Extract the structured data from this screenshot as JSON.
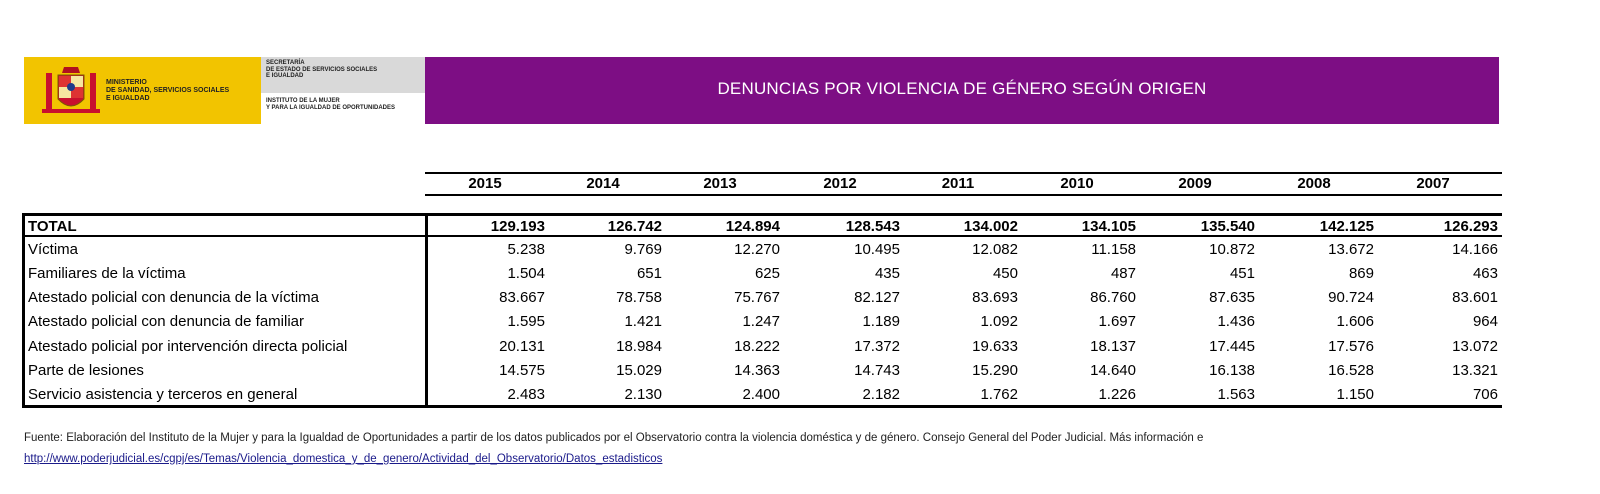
{
  "header": {
    "ministry": "MINISTERIO\nDE SANIDAD, SERVICIOS SOCIALES\nE IGUALDAD",
    "secretaria": "SECRETARÍA\nDE ESTADO DE SERVICIOS SOCIALES\nE IGUALDAD",
    "instituto": "INSTITUTO DE LA MUJER\nY PARA LA IGUALDAD DE OPORTUNIDADES",
    "title": "DENUNCIAS POR VIOLENCIA DE GÉNERO SEGÚN ORIGEN",
    "brand_color": "#7d0e84",
    "logo_color": "#f2c400"
  },
  "table": {
    "years": [
      "2015",
      "2014",
      "2013",
      "2012",
      "2011",
      "2010",
      "2009",
      "2008",
      "2007"
    ],
    "rows": [
      {
        "label": "TOTAL",
        "values": [
          "129.193",
          "126.742",
          "124.894",
          "128.543",
          "134.002",
          "134.105",
          "135.540",
          "142.125",
          "126.293"
        ]
      },
      {
        "label": "Víctima",
        "values": [
          "5.238",
          "9.769",
          "12.270",
          "10.495",
          "12.082",
          "11.158",
          "10.872",
          "13.672",
          "14.166"
        ]
      },
      {
        "label": "Familiares de la víctima",
        "values": [
          "1.504",
          "651",
          "625",
          "435",
          "450",
          "487",
          "451",
          "869",
          "463"
        ]
      },
      {
        "label": "Atestado policial con denuncia de la víctima",
        "values": [
          "83.667",
          "78.758",
          "75.767",
          "82.127",
          "83.693",
          "86.760",
          "87.635",
          "90.724",
          "83.601"
        ]
      },
      {
        "label": "Atestado policial con denuncia de familiar",
        "values": [
          "1.595",
          "1.421",
          "1.247",
          "1.189",
          "1.092",
          "1.697",
          "1.436",
          "1.606",
          "964"
        ]
      },
      {
        "label": "Atestado policial por intervención directa policial",
        "values": [
          "20.131",
          "18.984",
          "18.222",
          "17.372",
          "19.633",
          "18.137",
          "17.445",
          "17.576",
          "13.072"
        ]
      },
      {
        "label": "Parte de lesiones",
        "values": [
          "14.575",
          "15.029",
          "14.363",
          "14.743",
          "15.290",
          "14.640",
          "16.138",
          "16.528",
          "13.321"
        ]
      },
      {
        "label": "Servicio asistencia y terceros en general",
        "values": [
          "2.483",
          "2.130",
          "2.400",
          "2.182",
          "1.762",
          "1.226",
          "1.563",
          "1.150",
          "706"
        ]
      }
    ]
  },
  "footer": {
    "source": "Fuente: Elaboración del Instituto de la Mujer y para la Igualdad de Oportunidades a partir de los datos publicados por el Observatorio contra la violencia doméstica y de género. Consejo General del Poder Judicial. Más información e",
    "link": "http://www.poderjudicial.es/cgpj/es/Temas/Violencia_domestica_y_de_genero/Actividad_del_Observatorio/Datos_estadisticos"
  }
}
